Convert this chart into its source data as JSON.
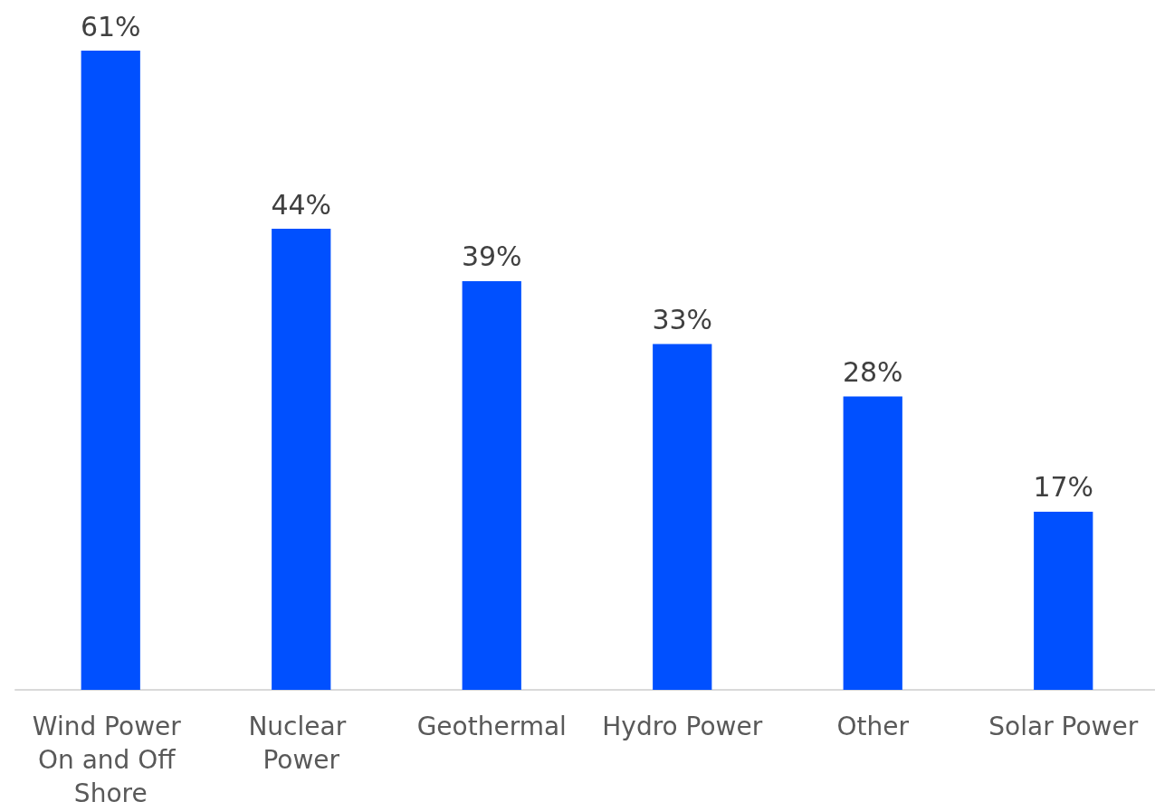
{
  "chart_data": {
    "type": "bar",
    "categories": [
      "Wind Power On and Off Shore",
      "Nuclear Power",
      "Geothermal",
      "Hydro Power",
      "Other",
      "Solar Power"
    ],
    "values": [
      61,
      44,
      39,
      33,
      28,
      17
    ],
    "value_labels": [
      "61%",
      "44%",
      "39%",
      "33%",
      "28%",
      "17%"
    ],
    "color": "#0050ff"
  }
}
